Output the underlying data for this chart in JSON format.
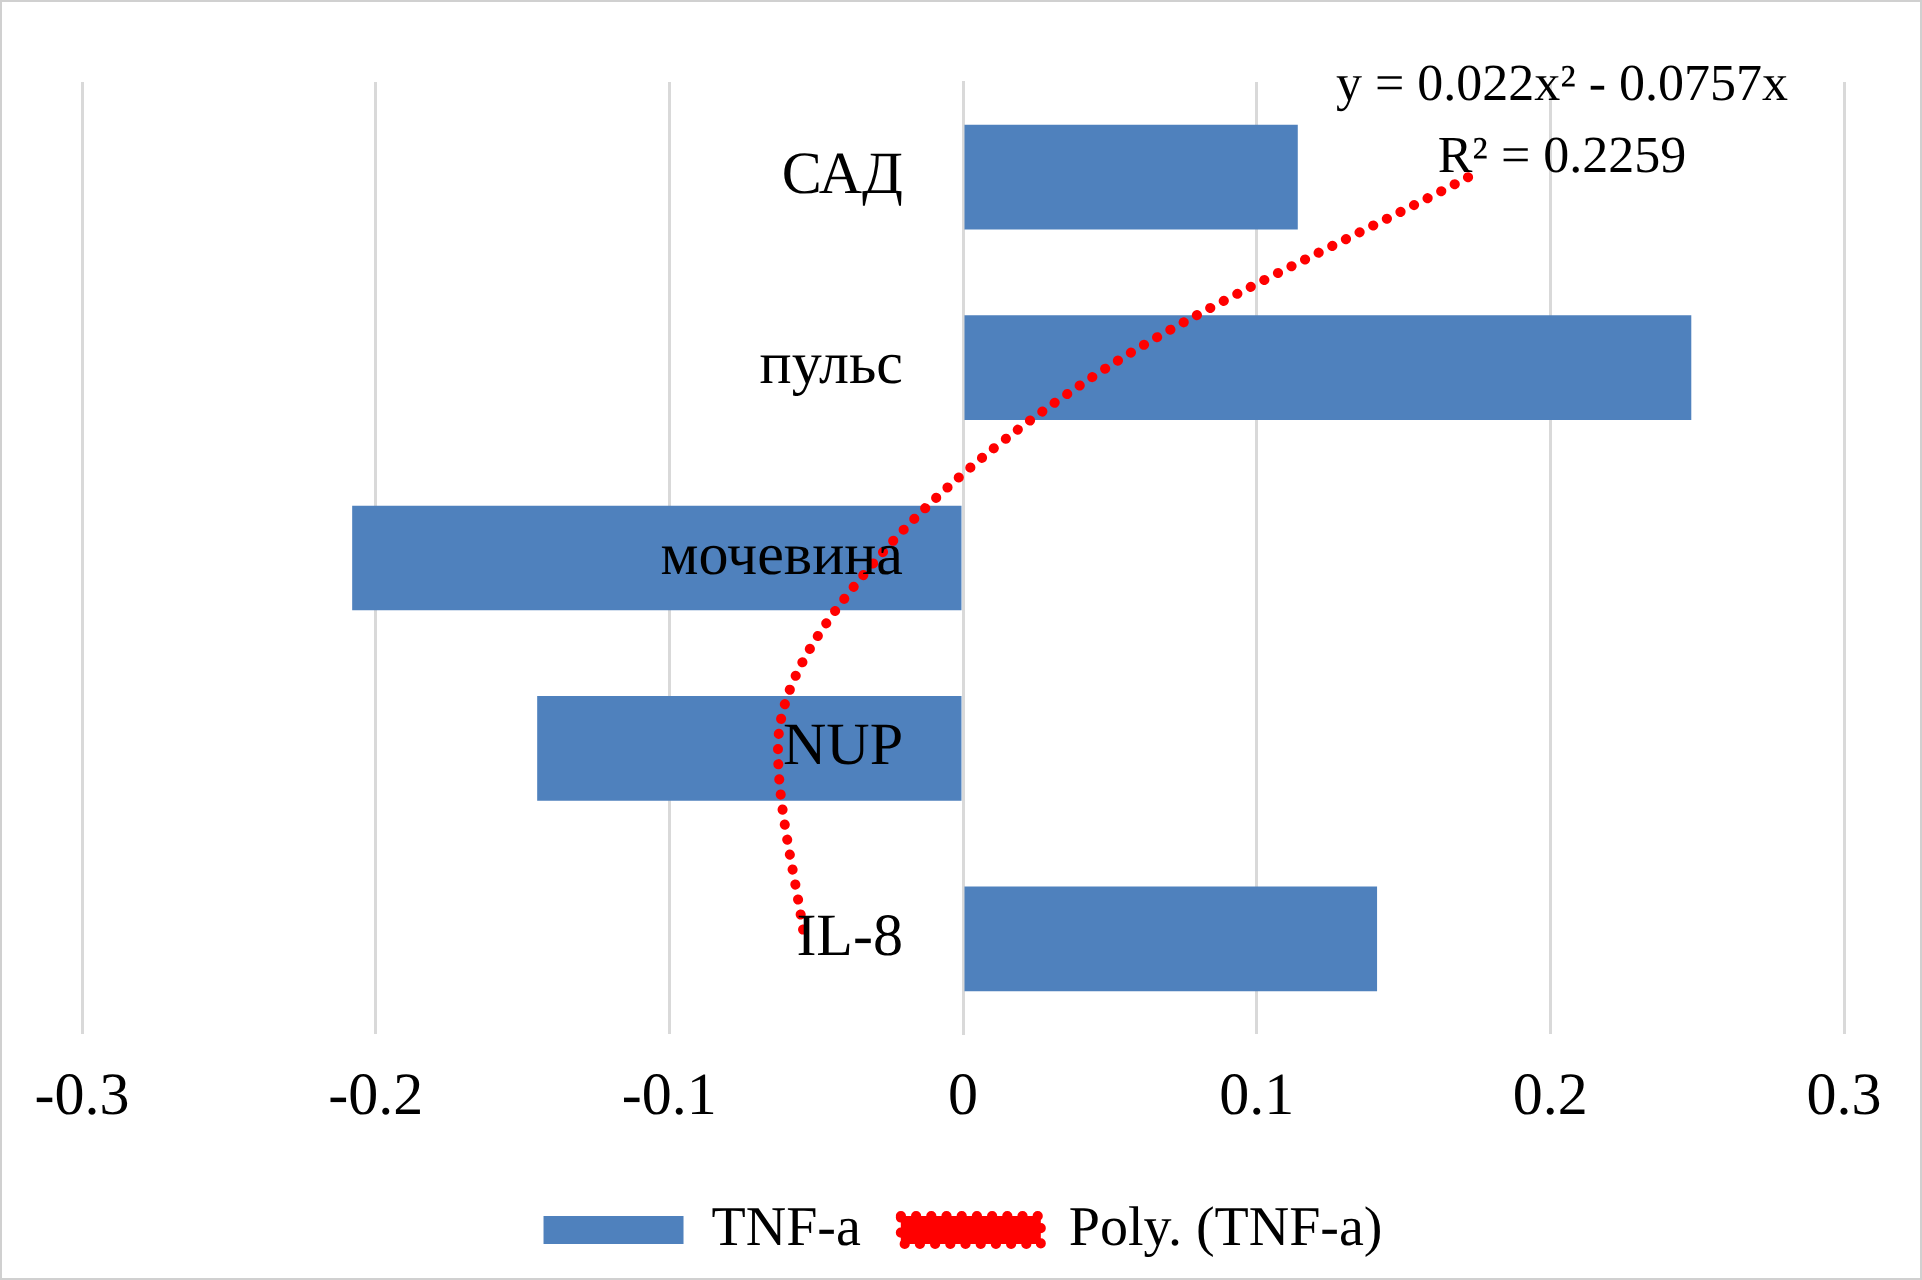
{
  "chart_data": {
    "type": "bar",
    "orientation": "horizontal",
    "categories": [
      "САД",
      "пульс",
      "мочевина",
      "NUP",
      "IL-8"
    ],
    "series": [
      {
        "name": "TNF-a",
        "color": "#4f81bd",
        "values": [
          0.114,
          0.248,
          -0.208,
          -0.145,
          0.141
        ]
      },
      {
        "name": "Poly. (TNF-a)",
        "type": "line",
        "color": "#ff0000",
        "line_style": "dotted",
        "marker": "none",
        "values": [
          0.172,
          0.049,
          -0.029,
          -0.063,
          -0.054
        ]
      }
    ],
    "xlim": [
      -0.3,
      0.3
    ],
    "xticks": [
      -0.3,
      -0.2,
      -0.1,
      0,
      0.1,
      0.2,
      0.3
    ],
    "grid": "x",
    "legend": "bottom",
    "annotations": [
      "y = 0.022x² - 0.0757x",
      "R² = 0.2259"
    ]
  }
}
